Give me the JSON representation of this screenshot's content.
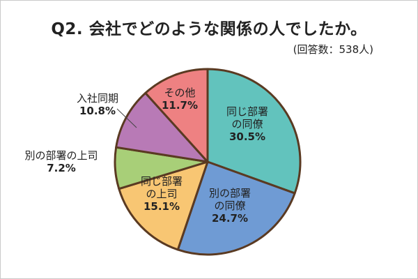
{
  "chart_data": {
    "type": "pie",
    "title": "Q2. 会社でどのような関係の人でしたか。",
    "subtitle": "(回答数：538人)",
    "slices": [
      {
        "lines": [
          "同じ部署",
          "の同僚"
        ],
        "value": 30.5,
        "value_label": "30.5%",
        "color": "#62c3bd"
      },
      {
        "lines": [
          "別の部署",
          "の同僚"
        ],
        "value": 24.7,
        "value_label": "24.7%",
        "color": "#6f9bd4"
      },
      {
        "lines": [
          "同じ部署",
          "の上司"
        ],
        "value": 15.1,
        "value_label": "15.1%",
        "color": "#f8c673"
      },
      {
        "lines": [
          "別の部署の上司"
        ],
        "value": 7.2,
        "value_label": "7.2%",
        "color": "#a8cf78"
      },
      {
        "lines": [
          "入社同期"
        ],
        "value": 10.8,
        "value_label": "10.8%",
        "color": "#b87ab6"
      },
      {
        "lines": [
          "その他"
        ],
        "value": 11.7,
        "value_label": "11.7%",
        "color": "#ee8182"
      }
    ],
    "start_angle_deg": 0,
    "direction": "clockwise",
    "outline_color": "#5a3a22"
  }
}
